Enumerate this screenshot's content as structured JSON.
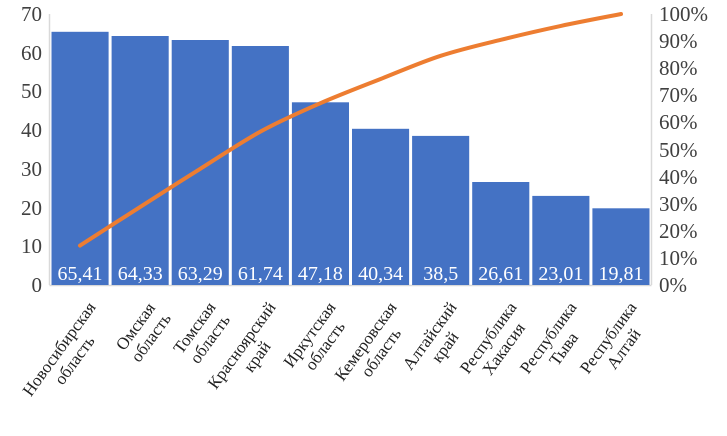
{
  "chart_data": {
    "type": "bar",
    "subtype": "pareto",
    "title": "",
    "categories": [
      "Новосибирская область",
      "Омская область",
      "Томская область",
      "Красноярский край",
      "Иркутская область",
      "Кемеровская область",
      "Алтайский край",
      "Республика Хакасия",
      "Республика Тыва",
      "Республика Алтай"
    ],
    "series": [
      {
        "name": "bars",
        "type": "bar",
        "axis": "left",
        "values": [
          65.41,
          64.33,
          63.29,
          61.74,
          47.18,
          40.34,
          38.5,
          26.61,
          23.01,
          19.81
        ],
        "value_labels": [
          "65,41",
          "64,33",
          "63,29",
          "61,74",
          "47,18",
          "40,34",
          "38,5",
          "26,61",
          "23,01",
          "19,81"
        ],
        "color": "#4472C4"
      },
      {
        "name": "cumulative-percent-line",
        "type": "line",
        "axis": "right",
        "smooth": true,
        "values": [
          14.53,
          28.82,
          42.87,
          56.59,
          67.07,
          76.03,
          84.58,
          90.49,
          95.6,
          100
        ],
        "color": "#ED7D31"
      }
    ],
    "left_axis": {
      "min": 0,
      "max": 70,
      "step": 10,
      "tick_labels": [
        "0",
        "10",
        "20",
        "30",
        "40",
        "50",
        "60",
        "70"
      ]
    },
    "right_axis": {
      "min": 0,
      "max": 100,
      "step": 10,
      "tick_labels": [
        "0%",
        "10%",
        "20%",
        "30%",
        "40%",
        "50%",
        "60%",
        "70%",
        "80%",
        "90%",
        "100%"
      ]
    },
    "grid": false,
    "legend": false
  },
  "colors": {
    "bar": "#4472C4",
    "line": "#ED7D31",
    "axis_text": "#404040",
    "category_text": "#202020",
    "axis_line": "#D9D9D9",
    "value_label_text": "#FFFFFF"
  }
}
